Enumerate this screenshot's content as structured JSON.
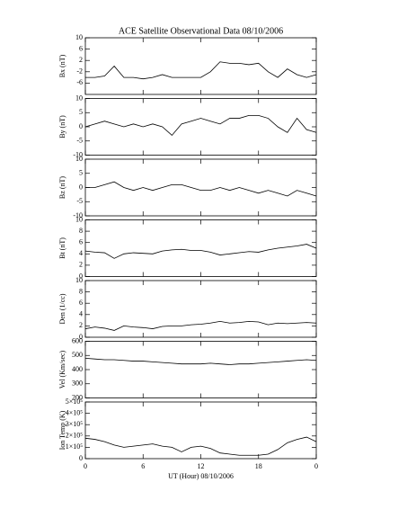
{
  "chart_data": [
    {
      "type": "line",
      "title": "ACE Satellite Observational Data   08/10/2006",
      "ylabel": "Bx (nT)",
      "color": "#000000",
      "x": [
        0,
        1,
        2,
        3,
        4,
        5,
        6,
        7,
        8,
        9,
        10,
        11,
        12,
        13,
        14,
        15,
        16,
        17,
        18,
        19,
        20,
        21,
        22,
        23,
        24
      ],
      "values": [
        -4,
        -4,
        -3.5,
        0,
        -4,
        -4,
        -4.5,
        -4,
        -3,
        -4,
        -4,
        -4,
        -4,
        -2,
        1.5,
        1,
        1,
        0.5,
        1,
        -2,
        -4,
        -1,
        -3,
        -4,
        -3
      ],
      "xlim": [
        0,
        24
      ],
      "xticks": [
        0,
        6,
        12,
        18,
        24
      ],
      "ylim": [
        -10,
        10
      ],
      "yticks": [
        -6,
        -2,
        2,
        6,
        10
      ]
    },
    {
      "type": "line",
      "ylabel": "By (nT)",
      "color": "#000000",
      "x": [
        0,
        1,
        2,
        3,
        4,
        5,
        6,
        7,
        8,
        9,
        10,
        11,
        12,
        13,
        14,
        15,
        16,
        17,
        18,
        19,
        20,
        21,
        22,
        23,
        24
      ],
      "values": [
        0,
        1,
        2,
        1,
        0,
        1,
        0,
        1,
        0,
        -3,
        1,
        2,
        3,
        2,
        1,
        3,
        3,
        4,
        4,
        3,
        0,
        -2,
        3,
        -1,
        -2
      ],
      "xlim": [
        0,
        24
      ],
      "xticks": [
        0,
        6,
        12,
        18,
        24
      ],
      "ylim": [
        -10,
        10
      ],
      "yticks": [
        -10,
        -5,
        0,
        5,
        10
      ]
    },
    {
      "type": "line",
      "ylabel": "Bz (nT)",
      "color": "#000000",
      "x": [
        0,
        1,
        2,
        3,
        4,
        5,
        6,
        7,
        8,
        9,
        10,
        11,
        12,
        13,
        14,
        15,
        16,
        17,
        18,
        19,
        20,
        21,
        22,
        23,
        24
      ],
      "values": [
        0,
        0,
        1,
        2,
        0,
        -1,
        0,
        -1,
        0,
        1,
        1,
        0,
        -1,
        -1,
        0,
        -1,
        0,
        -1,
        -2,
        -1,
        -2,
        -3,
        -1,
        -2,
        -3
      ],
      "xlim": [
        0,
        24
      ],
      "xticks": [
        0,
        6,
        12,
        18,
        24
      ],
      "ylim": [
        -10,
        10
      ],
      "yticks": [
        -10,
        -5,
        0,
        5,
        10
      ]
    },
    {
      "type": "line",
      "ylabel": "Bt (nT)",
      "color": "#000000",
      "x": [
        0,
        1,
        2,
        3,
        4,
        5,
        6,
        7,
        8,
        9,
        10,
        11,
        12,
        13,
        14,
        15,
        16,
        17,
        18,
        19,
        20,
        21,
        22,
        23,
        24
      ],
      "values": [
        4.5,
        4.3,
        4.2,
        3.2,
        4,
        4.2,
        4.1,
        4,
        4.5,
        4.7,
        4.8,
        4.6,
        4.6,
        4.3,
        3.8,
        4,
        4.2,
        4.4,
        4.3,
        4.7,
        5,
        5.2,
        5.4,
        5.7,
        5
      ],
      "xlim": [
        0,
        24
      ],
      "xticks": [
        0,
        6,
        12,
        18,
        24
      ],
      "ylim": [
        0,
        10
      ],
      "yticks": [
        0,
        2,
        4,
        6,
        8,
        10
      ]
    },
    {
      "type": "line",
      "ylabel": "Den (1/cc)",
      "color": "#000000",
      "x": [
        0,
        1,
        2,
        3,
        4,
        5,
        6,
        7,
        8,
        9,
        10,
        11,
        12,
        13,
        14,
        15,
        16,
        17,
        18,
        19,
        20,
        21,
        22,
        23,
        24
      ],
      "values": [
        1.5,
        1.8,
        1.6,
        1.2,
        2,
        1.8,
        1.7,
        1.5,
        1.9,
        2,
        2,
        2.2,
        2.3,
        2.5,
        2.8,
        2.5,
        2.6,
        2.8,
        2.7,
        2.2,
        2.5,
        2.4,
        2.5,
        2.6,
        2.5
      ],
      "xlim": [
        0,
        24
      ],
      "xticks": [
        0,
        6,
        12,
        18,
        24
      ],
      "ylim": [
        0,
        10
      ],
      "yticks": [
        0,
        2,
        4,
        6,
        8,
        10
      ]
    },
    {
      "type": "line",
      "ylabel": "Vel (Km/sec)",
      "color": "#000000",
      "x": [
        0,
        1,
        2,
        3,
        4,
        5,
        6,
        7,
        8,
        9,
        10,
        11,
        12,
        13,
        14,
        15,
        16,
        17,
        18,
        19,
        20,
        21,
        22,
        23,
        24
      ],
      "values": [
        480,
        475,
        470,
        470,
        465,
        460,
        460,
        455,
        450,
        445,
        440,
        440,
        440,
        445,
        440,
        435,
        440,
        440,
        445,
        450,
        455,
        460,
        465,
        470,
        465
      ],
      "xlim": [
        0,
        24
      ],
      "xticks": [
        0,
        6,
        12,
        18,
        24
      ],
      "ylim": [
        200,
        600
      ],
      "yticks": [
        200,
        300,
        400,
        500,
        600
      ]
    },
    {
      "type": "line",
      "ylabel": "Ion Temp (K)",
      "xlabel": "UT (Hour)   08/10/2006",
      "color": "#000000",
      "x": [
        0,
        1,
        2,
        3,
        4,
        5,
        6,
        7,
        8,
        9,
        10,
        11,
        12,
        13,
        14,
        15,
        16,
        17,
        18,
        19,
        20,
        21,
        22,
        23,
        24
      ],
      "values": [
        180000,
        170000,
        150000,
        120000,
        100000,
        110000,
        120000,
        130000,
        110000,
        100000,
        60000,
        100000,
        110000,
        90000,
        50000,
        40000,
        30000,
        30000,
        30000,
        40000,
        80000,
        140000,
        170000,
        190000,
        150000
      ],
      "xlim": [
        0,
        24
      ],
      "xticks": [
        0,
        6,
        12,
        18,
        {
          "value": 24,
          "label": "0"
        }
      ],
      "ylim": [
        0,
        500000
      ],
      "yticks": [
        0,
        {
          "value": 100000,
          "label": "1×10⁵"
        },
        {
          "value": 200000,
          "label": "2×10⁵"
        },
        {
          "value": 300000,
          "label": "3×10⁵"
        },
        {
          "value": 400000,
          "label": "4×10⁵"
        },
        {
          "value": 500000,
          "label": "5×10⁵"
        }
      ]
    }
  ]
}
